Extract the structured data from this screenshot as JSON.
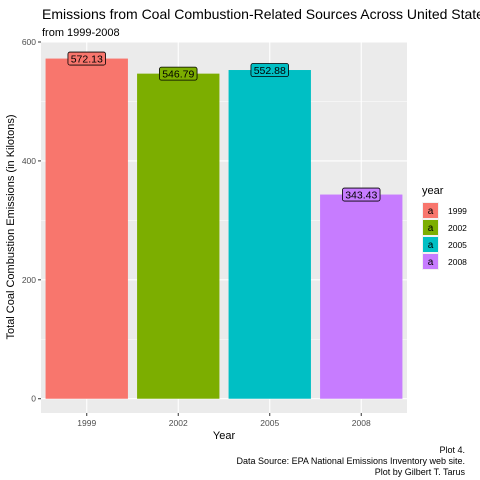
{
  "chart_data": {
    "type": "bar",
    "title": "Emissions from Coal Combustion-Related Sources Across United States",
    "subtitle": "from 1999-2008",
    "xlabel": "Year",
    "ylabel": "Total Coal Combustion Emissions (in Kilotons)",
    "categories": [
      "1999",
      "2002",
      "2005",
      "2008"
    ],
    "values": [
      572.13,
      546.79,
      552.88,
      343.43
    ],
    "data_labels": [
      "572.13",
      "546.79",
      "552.88",
      "343.43"
    ],
    "colors": [
      "#F8766D",
      "#7CAE00",
      "#00BFC4",
      "#C77CFF"
    ],
    "ylim": [
      -24,
      600
    ],
    "yticks": [
      0,
      200,
      400,
      600
    ],
    "ytick_labels": [
      "0",
      "200",
      "400",
      "600"
    ],
    "grid": true,
    "panel_background": "#EBEBEB",
    "legend": {
      "title": "year",
      "position": "right",
      "key_glyph": "a",
      "entries": [
        "1999",
        "2002",
        "2005",
        "2008"
      ]
    },
    "caption": [
      "Plot 4.",
      "Data Source: EPA National Emissions Inventory web site.",
      "Plot by Gilbert T. Tarus"
    ]
  }
}
